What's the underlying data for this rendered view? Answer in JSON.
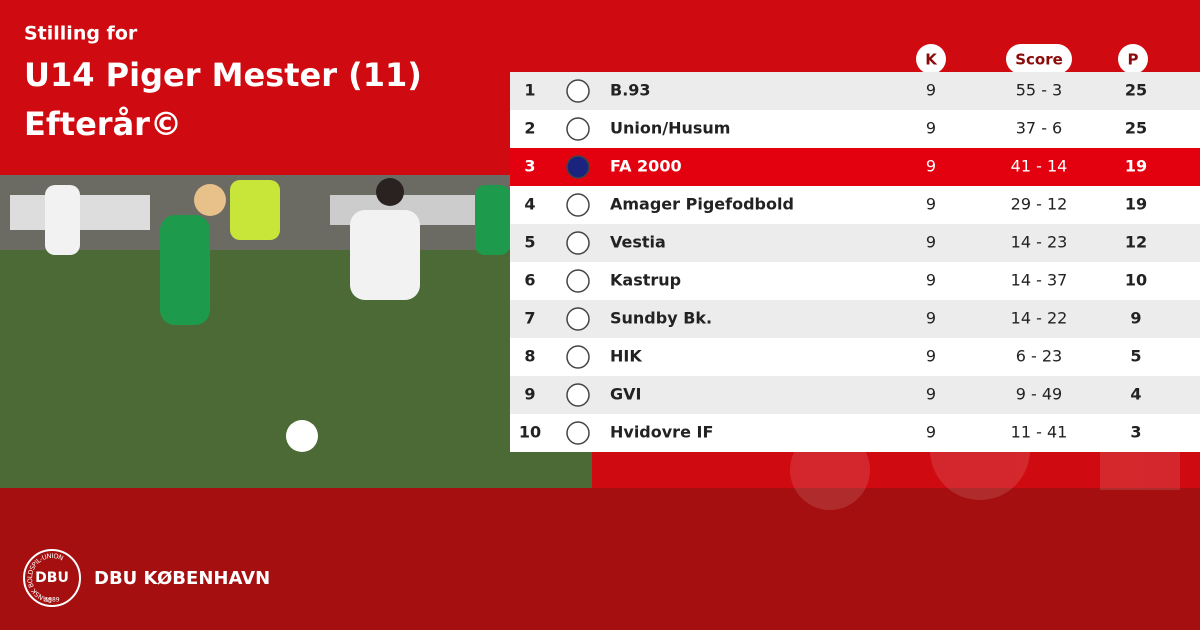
{
  "header": {
    "subtitle": "Stilling for",
    "title": "U14 Piger Mester (11)",
    "season": "Efterår©"
  },
  "table": {
    "columns": [
      "K",
      "Score",
      "P"
    ],
    "highlighted_rank": 3,
    "rows": [
      [
        "1",
        "B.93",
        "9",
        "55 - 3",
        "25"
      ],
      [
        "2",
        "Union/Husum",
        "9",
        "37 - 6",
        "25"
      ],
      [
        "3",
        "FA 2000",
        "9",
        "41 - 14",
        "19"
      ],
      [
        "4",
        "Amager Pigefodbold",
        "9",
        "29 - 12",
        "19"
      ],
      [
        "5",
        "Vestia",
        "9",
        "14 - 23",
        "12"
      ],
      [
        "6",
        "Kastrup",
        "9",
        "14 - 37",
        "10"
      ],
      [
        "7",
        "Sundby Bk.",
        "9",
        "14 - 22",
        "9"
      ],
      [
        "8",
        "HIK",
        "9",
        "6 - 23",
        "5"
      ],
      [
        "9",
        "GVI",
        "9",
        "9 - 49",
        "4"
      ],
      [
        "10",
        "Hvidovre IF",
        "9",
        "11 - 41",
        "3"
      ]
    ]
  },
  "footer": {
    "organization": "DBU KØBENHAVN",
    "logo_initials": "DBU",
    "logo_ring": "DANSK BOLDSPIL-UNION",
    "logo_year": "1889"
  }
}
